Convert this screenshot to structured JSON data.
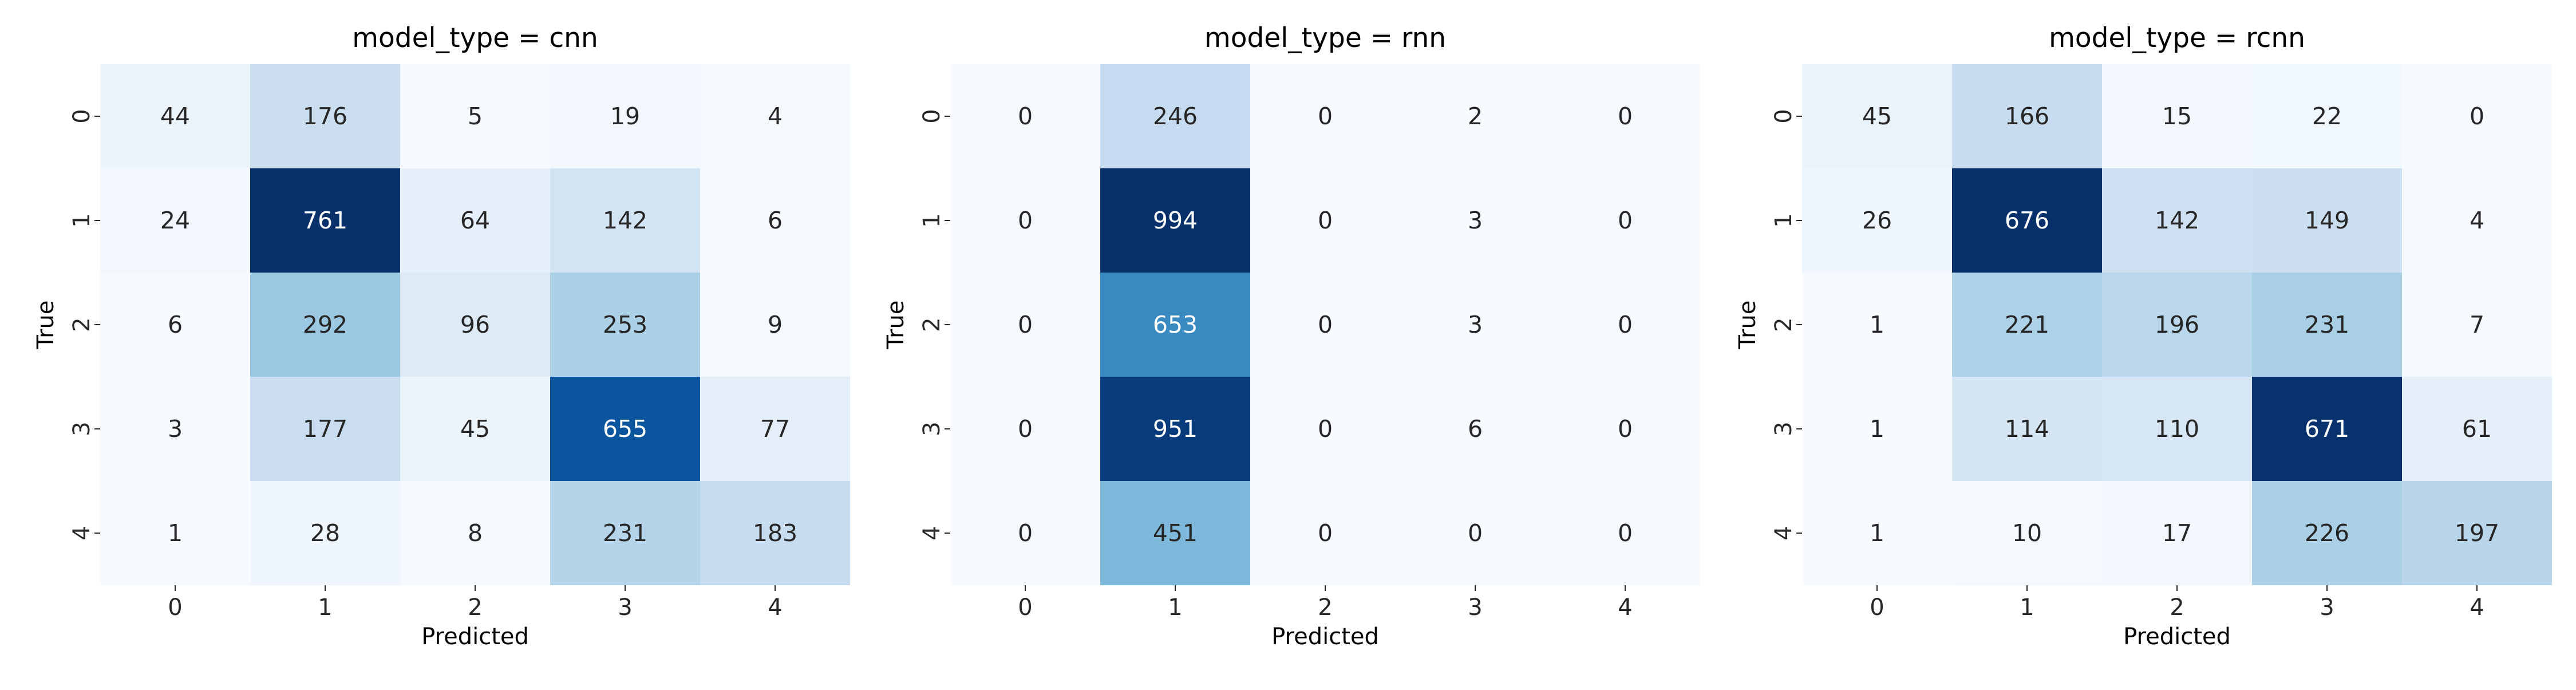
{
  "chart_data": [
    {
      "type": "heatmap",
      "title": "model_type = cnn",
      "xlabel": "Predicted",
      "ylabel": "True",
      "x_ticks": [
        "0",
        "1",
        "2",
        "3",
        "4"
      ],
      "y_ticks": [
        "0",
        "1",
        "2",
        "3",
        "4"
      ],
      "colormap": "Blues",
      "values": [
        [
          44,
          176,
          5,
          19,
          4
        ],
        [
          24,
          761,
          64,
          142,
          6
        ],
        [
          6,
          292,
          96,
          253,
          9
        ],
        [
          3,
          177,
          45,
          655,
          77
        ],
        [
          1,
          28,
          8,
          231,
          183
        ]
      ]
    },
    {
      "type": "heatmap",
      "title": "model_type = rnn",
      "xlabel": "Predicted",
      "ylabel": "True",
      "x_ticks": [
        "0",
        "1",
        "2",
        "3",
        "4"
      ],
      "y_ticks": [
        "0",
        "1",
        "2",
        "3",
        "4"
      ],
      "colormap": "Blues",
      "values": [
        [
          0,
          246,
          0,
          2,
          0
        ],
        [
          0,
          994,
          0,
          3,
          0
        ],
        [
          0,
          653,
          0,
          3,
          0
        ],
        [
          0,
          951,
          0,
          6,
          0
        ],
        [
          0,
          451,
          0,
          0,
          0
        ]
      ]
    },
    {
      "type": "heatmap",
      "title": "model_type = rcnn",
      "xlabel": "Predicted",
      "ylabel": "True",
      "x_ticks": [
        "0",
        "1",
        "2",
        "3",
        "4"
      ],
      "y_ticks": [
        "0",
        "1",
        "2",
        "3",
        "4"
      ],
      "colormap": "Blues",
      "values": [
        [
          45,
          166,
          15,
          22,
          0
        ],
        [
          26,
          676,
          142,
          149,
          4
        ],
        [
          1,
          221,
          196,
          231,
          7
        ],
        [
          1,
          114,
          110,
          671,
          61
        ],
        [
          1,
          10,
          17,
          226,
          197
        ]
      ]
    }
  ]
}
